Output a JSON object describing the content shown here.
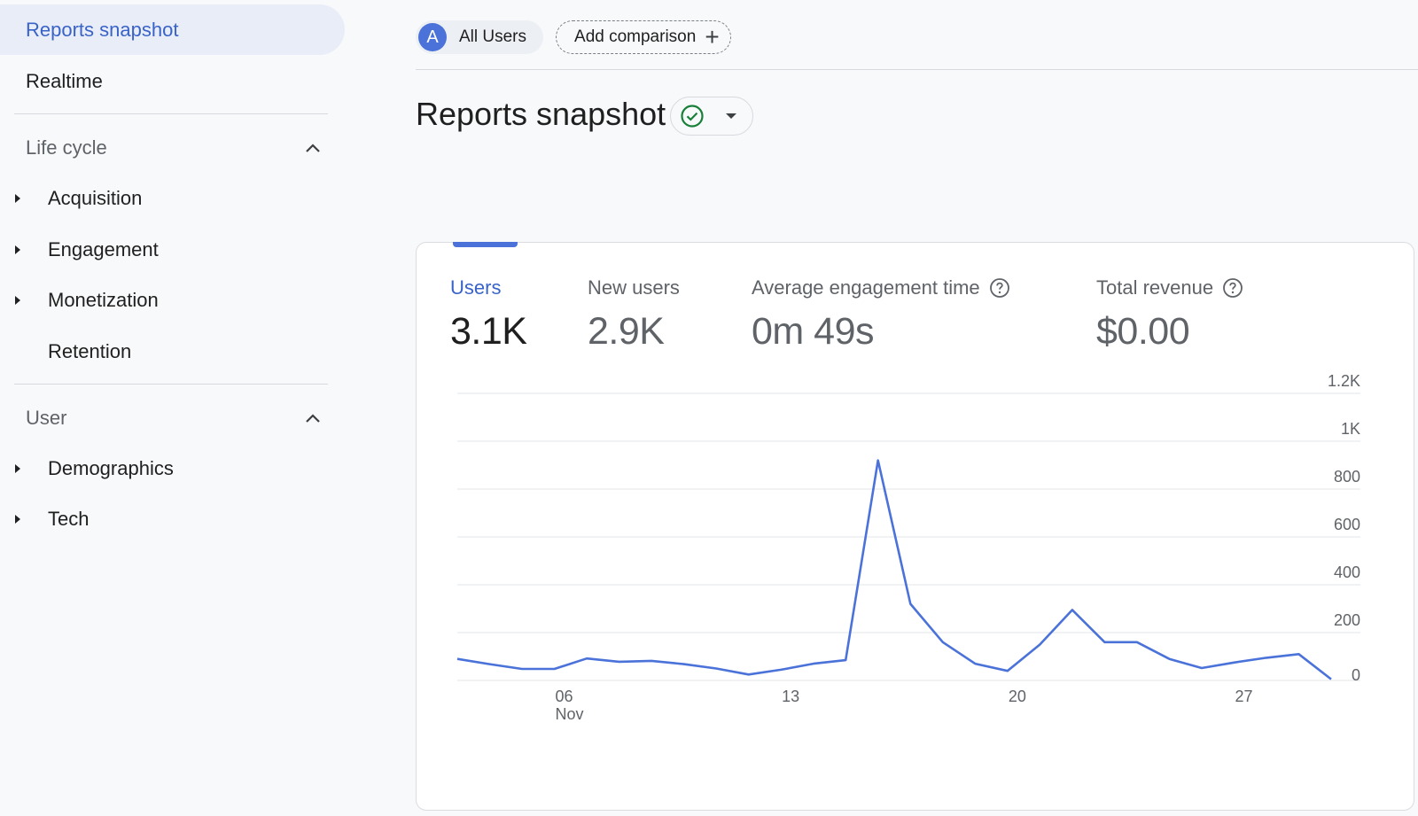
{
  "sidebar": {
    "active_item": "Reports snapshot",
    "realtime": "Realtime",
    "sections": [
      {
        "title": "Life cycle",
        "items": [
          "Acquisition",
          "Engagement",
          "Monetization",
          "Retention"
        ]
      },
      {
        "title": "User",
        "items": [
          "Demographics",
          "Tech"
        ]
      }
    ]
  },
  "topbar": {
    "avatar_letter": "A",
    "segment_label": "All Users",
    "compare_label": "Add comparison",
    "compare_icon": "plus-icon"
  },
  "page": {
    "title": "Reports snapshot",
    "status_icon": "check-circle-icon"
  },
  "metrics": [
    {
      "label": "Users",
      "value": "3.1K",
      "active": true
    },
    {
      "label": "New users",
      "value": "2.9K"
    },
    {
      "label": "Average engagement time",
      "value": "0m 49s",
      "help": true
    },
    {
      "label": "Total revenue",
      "value": "$0.00",
      "help": true
    }
  ],
  "colors": {
    "accent": "#4a72d9",
    "active_text": "#3a63c8",
    "status_green": "#188038"
  },
  "chart_data": {
    "type": "line",
    "series": [
      {
        "values": [
          90,
          68,
          48,
          48,
          92,
          78,
          82,
          68,
          50,
          25,
          45,
          70,
          85,
          920,
          320,
          160,
          70,
          40,
          150,
          295,
          160,
          160,
          90,
          52,
          75,
          95,
          110,
          5
        ]
      }
    ],
    "x_ticks": [
      {
        "index": 3,
        "label": "06",
        "sublabel": "Nov"
      },
      {
        "index": 10,
        "label": "13"
      },
      {
        "index": 17,
        "label": "20"
      },
      {
        "index": 24,
        "label": "27"
      }
    ],
    "y_ticks": [
      {
        "value": 0,
        "label": "0"
      },
      {
        "value": 200,
        "label": "200"
      },
      {
        "value": 400,
        "label": "400"
      },
      {
        "value": 600,
        "label": "600"
      },
      {
        "value": 800,
        "label": "800"
      },
      {
        "value": 1000,
        "label": "1K"
      },
      {
        "value": 1200,
        "label": "1.2K"
      }
    ],
    "ylim": [
      0,
      1200
    ],
    "grid": true
  }
}
